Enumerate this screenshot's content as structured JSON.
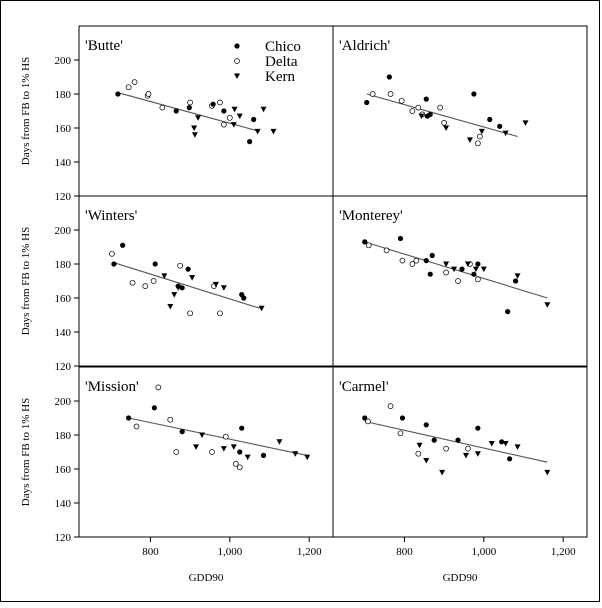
{
  "chart_data": {
    "type": "scatter",
    "layout": "3x2 panel grid",
    "xlabel": "GDD90",
    "ylabel": "Days from FB to 1% HS",
    "xlim": [
      620,
      1260
    ],
    "ylim": [
      120,
      220
    ],
    "xticks": [
      800,
      1000,
      1200
    ],
    "xtick_labels": [
      "800",
      "1,000",
      "1,200"
    ],
    "yticks": [
      120,
      140,
      160,
      180,
      200
    ],
    "legend": {
      "position": "top-right of first panel",
      "entries": [
        {
          "name": "Chico",
          "marker": "filled-circle"
        },
        {
          "name": "Delta",
          "marker": "open-circle"
        },
        {
          "name": "Kern",
          "marker": "filled-triangle-down"
        }
      ]
    },
    "panels": [
      {
        "title": "'Butte'",
        "trend": {
          "x": [
            715,
            1075
          ],
          "y": [
            181,
            158
          ]
        },
        "series": {
          "Chico": [
            [
              718,
              180
            ],
            [
              865,
              170
            ],
            [
              898,
              172
            ],
            [
              958,
              174
            ],
            [
              985,
              170
            ],
            [
              1050,
              152
            ],
            [
              1060,
              165
            ]
          ],
          "Delta": [
            [
              745,
              184
            ],
            [
              760,
              187
            ],
            [
              793,
              179
            ],
            [
              795,
              180
            ],
            [
              830,
              172
            ],
            [
              900,
              175
            ],
            [
              955,
              173
            ],
            [
              975,
              175
            ],
            [
              985,
              162
            ],
            [
              1000,
              166
            ]
          ],
          "Kern": [
            [
              910,
              160
            ],
            [
              912,
              156
            ],
            [
              920,
              166
            ],
            [
              1010,
              162
            ],
            [
              1012,
              171
            ],
            [
              1025,
              167
            ],
            [
              1070,
              158
            ],
            [
              1085,
              171
            ],
            [
              1110,
              158
            ]
          ]
        }
      },
      {
        "title": "'Aldrich'",
        "trend": {
          "x": [
            705,
            1085
          ],
          "y": [
            180,
            155
          ]
        },
        "series": {
          "Chico": [
            [
              705,
              175
            ],
            [
              762,
              190
            ],
            [
              855,
              177
            ],
            [
              858,
              167
            ],
            [
              865,
              168
            ],
            [
              975,
              180
            ],
            [
              1015,
              165
            ],
            [
              1040,
              161
            ]
          ],
          "Delta": [
            [
              720,
              180
            ],
            [
              765,
              180
            ],
            [
              793,
              176
            ],
            [
              820,
              170
            ],
            [
              835,
              172
            ],
            [
              845,
              168
            ],
            [
              890,
              172
            ],
            [
              900,
              163
            ],
            [
              985,
              151
            ],
            [
              990,
              155
            ]
          ],
          "Kern": [
            [
              843,
              167
            ],
            [
              905,
              160
            ],
            [
              965,
              153
            ],
            [
              995,
              158
            ],
            [
              1055,
              157
            ],
            [
              1105,
              163
            ]
          ]
        }
      },
      {
        "title": "'Winters'",
        "trend": {
          "x": [
            705,
            1075
          ],
          "y": [
            181,
            154
          ]
        },
        "series": {
          "Chico": [
            [
              708,
              180
            ],
            [
              730,
              191
            ],
            [
              812,
              180
            ],
            [
              870,
              167
            ],
            [
              880,
              166
            ],
            [
              895,
              177
            ],
            [
              1030,
              162
            ],
            [
              1035,
              160
            ]
          ],
          "Delta": [
            [
              703,
              186
            ],
            [
              755,
              169
            ],
            [
              787,
              167
            ],
            [
              808,
              170
            ],
            [
              875,
              179
            ],
            [
              900,
              151
            ],
            [
              960,
              167
            ],
            [
              975,
              151
            ]
          ],
          "Kern": [
            [
              835,
              173
            ],
            [
              850,
              155
            ],
            [
              860,
              162
            ],
            [
              870,
              166
            ],
            [
              905,
              172
            ],
            [
              965,
              168
            ],
            [
              985,
              166
            ],
            [
              1080,
              154
            ]
          ]
        }
      },
      {
        "title": "'Monterey'",
        "trend": {
          "x": [
            700,
            1160
          ],
          "y": [
            193,
            160
          ]
        },
        "series": {
          "Chico": [
            [
              700,
              193
            ],
            [
              790,
              195
            ],
            [
              855,
              182
            ],
            [
              865,
              174
            ],
            [
              870,
              185
            ],
            [
              945,
              177
            ],
            [
              975,
              174
            ],
            [
              985,
              180
            ],
            [
              1060,
              152
            ],
            [
              1080,
              170
            ]
          ],
          "Delta": [
            [
              710,
              191
            ],
            [
              755,
              188
            ],
            [
              795,
              182
            ],
            [
              820,
              180
            ],
            [
              830,
              182
            ],
            [
              905,
              175
            ],
            [
              935,
              170
            ],
            [
              965,
              180
            ],
            [
              985,
              171
            ]
          ],
          "Kern": [
            [
              905,
              180
            ],
            [
              925,
              177
            ],
            [
              960,
              180
            ],
            [
              980,
              177
            ],
            [
              1000,
              177
            ],
            [
              1085,
              173
            ],
            [
              1160,
              156
            ]
          ]
        }
      },
      {
        "title": "'Mission'",
        "trend": {
          "x": [
            745,
            1195
          ],
          "y": [
            190,
            168
          ]
        },
        "series": {
          "Chico": [
            [
              745,
              190
            ],
            [
              810,
              196
            ],
            [
              880,
              182
            ],
            [
              1030,
              184
            ],
            [
              1025,
              170
            ],
            [
              1085,
              168
            ]
          ],
          "Delta": [
            [
              765,
              185
            ],
            [
              820,
              208
            ],
            [
              850,
              189
            ],
            [
              865,
              170
            ],
            [
              955,
              170
            ],
            [
              990,
              179
            ],
            [
              1015,
              163
            ],
            [
              1025,
              161
            ]
          ],
          "Kern": [
            [
              915,
              173
            ],
            [
              930,
              180
            ],
            [
              985,
              172
            ],
            [
              1010,
              173
            ],
            [
              1045,
              167
            ],
            [
              1125,
              176
            ],
            [
              1165,
              169
            ],
            [
              1195,
              167
            ]
          ]
        }
      },
      {
        "title": "'Carmel'",
        "trend": {
          "x": [
            700,
            1160
          ],
          "y": [
            188,
            164
          ]
        },
        "series": {
          "Chico": [
            [
              700,
              190
            ],
            [
              795,
              190
            ],
            [
              855,
              186
            ],
            [
              875,
              177
            ],
            [
              935,
              177
            ],
            [
              985,
              184
            ],
            [
              1045,
              176
            ],
            [
              1065,
              166
            ]
          ],
          "Delta": [
            [
              708,
              188
            ],
            [
              765,
              197
            ],
            [
              790,
              181
            ],
            [
              835,
              169
            ],
            [
              905,
              172
            ],
            [
              960,
              172
            ]
          ],
          "Kern": [
            [
              838,
              174
            ],
            [
              855,
              165
            ],
            [
              895,
              158
            ],
            [
              955,
              168
            ],
            [
              985,
              169
            ],
            [
              1020,
              175
            ],
            [
              1055,
              175
            ],
            [
              1085,
              173
            ],
            [
              1160,
              158
            ]
          ]
        }
      }
    ]
  }
}
